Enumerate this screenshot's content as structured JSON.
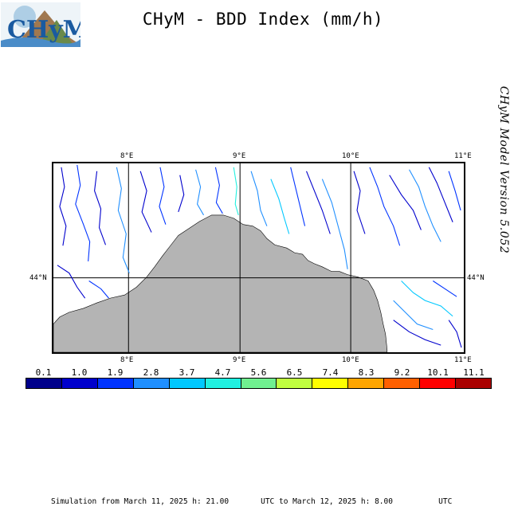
{
  "header": {
    "logo_text": "CHyM",
    "title": "CHyM - BDD Index (mm/h)"
  },
  "version_label": "CHyM Model Version 5.052",
  "map": {
    "top_ticks": [
      "8°E",
      "9°E",
      "10°E",
      "11°E"
    ],
    "bottom_ticks": [
      "8°E",
      "9°E",
      "10°E",
      "11°E"
    ],
    "lat_label_left": "44°N",
    "lat_label_right": "44°N",
    "land_color": "#ffffff",
    "sea_color": "#b4b4b4"
  },
  "colorbar": {
    "labels": [
      "0.1",
      "1.0",
      "1.9",
      "2.8",
      "3.7",
      "4.7",
      "5.6",
      "6.5",
      "7.4",
      "8.3",
      "9.2",
      "10.1",
      "11.1"
    ],
    "colors": [
      "#00008b",
      "#0000cd",
      "#0033ff",
      "#1f8fff",
      "#00c8ff",
      "#20f0e0",
      "#70f090",
      "#c0ff40",
      "#ffff00",
      "#ffa500",
      "#ff6000",
      "#ff0000",
      "#aa0000"
    ]
  },
  "footer": {
    "text": "Simulation from March 11, 2025 h: 21.00       UTC to March 12, 2025 h: 8.00          UTC"
  }
}
